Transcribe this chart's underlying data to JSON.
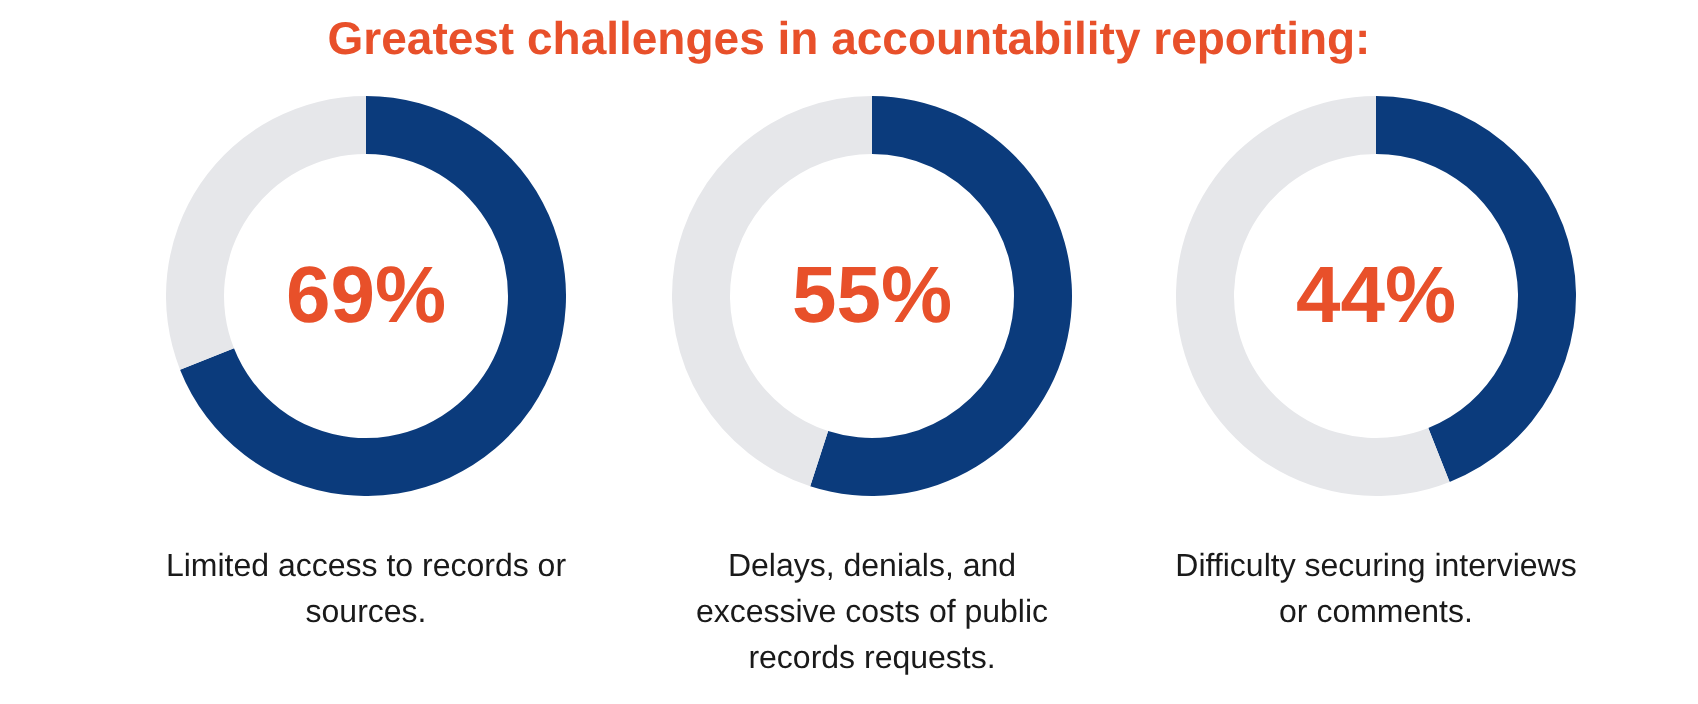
{
  "chart_data": [
    {
      "type": "donut",
      "title": "Greatest challenges in accountability reporting:",
      "xlabel": "Limited access to records or sources.",
      "categories": [
        null,
        null
      ],
      "values": [
        69,
        31
      ],
      "colors": [
        "#0b3b7c",
        "#e6e7ea"
      ],
      "value_labels": [
        "69%",
        null
      ],
      "legend": false
    },
    {
      "type": "donut",
      "xlabel": "Delays, denials, and excessive costs of public records requests.",
      "categories": [
        null,
        null
      ],
      "values": [
        55,
        45
      ],
      "colors": [
        "#0b3b7c",
        "#e6e7ea"
      ],
      "value_labels": [
        "55%",
        null
      ],
      "legend": false
    },
    {
      "type": "donut",
      "xlabel": "Difficulty securing interviews or comments.",
      "categories": [
        null,
        null
      ],
      "values": [
        44,
        56
      ],
      "colors": [
        "#0b3b7c",
        "#e6e7ea"
      ],
      "value_labels": [
        "44%",
        null
      ],
      "legend": false
    }
  ]
}
